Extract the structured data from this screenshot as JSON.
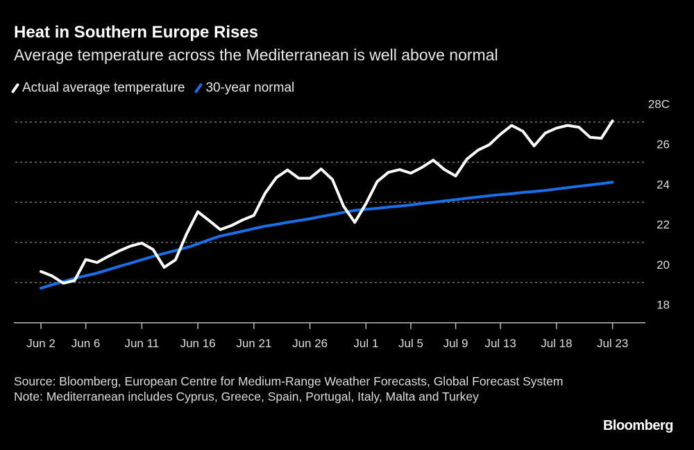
{
  "header": {
    "title": "Heat in Southern Europe Rises",
    "subtitle": "Average temperature across the Mediterranean is well above normal"
  },
  "footer": {
    "source": "Source: Bloomberg, European Centre for Medium-Range Weather Forecasts, Global Forecast System",
    "note": "Note: Mediterranean includes Cyprus, Greece, Spain, Portugal, Italy, Malta and Turkey",
    "logo": "Bloomberg"
  },
  "chart_data": {
    "type": "line",
    "title": "Heat in Southern Europe Rises",
    "subtitle": "Average temperature across the Mediterranean is well above normal",
    "x_start": "Jun 2",
    "x_end": "Jul 23",
    "x_tick_labels": [
      "Jun 2",
      "Jun 6",
      "Jun 11",
      "Jun 16",
      "Jun 21",
      "Jun 26",
      "Jul 1",
      "Jul 5",
      "Jul 9",
      "Jul 13",
      "Jul 18",
      "Jul 23"
    ],
    "x_tick_days": [
      0,
      4,
      9,
      14,
      19,
      24,
      29,
      33,
      37,
      41,
      46,
      51
    ],
    "y_tick_labels": [
      "18",
      "20",
      "22",
      "24",
      "26",
      "28C"
    ],
    "y_ticks": [
      18,
      20,
      22,
      24,
      26,
      28
    ],
    "ylim": [
      18,
      28
    ],
    "grid": true,
    "legend_position": "top-left",
    "series": [
      {
        "name": "Actual average temperature",
        "color": "#ffffff",
        "values": [
          20.55,
          20.33,
          19.97,
          20.1,
          21.15,
          21.0,
          21.3,
          21.58,
          21.82,
          21.97,
          21.65,
          20.76,
          21.13,
          22.43,
          23.53,
          23.09,
          22.64,
          22.84,
          23.12,
          23.35,
          24.45,
          25.23,
          25.61,
          25.2,
          25.2,
          25.66,
          25.14,
          23.81,
          23.0,
          23.93,
          25.03,
          25.49,
          25.63,
          25.45,
          25.74,
          26.1,
          25.63,
          25.31,
          26.15,
          26.6,
          26.87,
          27.39,
          27.83,
          27.54,
          26.81,
          27.45,
          27.7,
          27.83,
          27.74,
          27.24,
          27.19,
          28.06
        ]
      },
      {
        "name": "30-year normal",
        "color": "#1a6ee8",
        "values": [
          19.72,
          19.89,
          20.05,
          20.21,
          20.34,
          20.47,
          20.64,
          20.81,
          20.97,
          21.14,
          21.3,
          21.45,
          21.6,
          21.74,
          21.93,
          22.13,
          22.32,
          22.44,
          22.56,
          22.69,
          22.81,
          22.9,
          23.0,
          23.09,
          23.18,
          23.29,
          23.39,
          23.5,
          23.6,
          23.65,
          23.7,
          23.76,
          23.81,
          23.87,
          23.94,
          24.0,
          24.07,
          24.13,
          24.2,
          24.26,
          24.33,
          24.38,
          24.43,
          24.49,
          24.54,
          24.59,
          24.66,
          24.73,
          24.8,
          24.86,
          24.93,
          25.0
        ]
      }
    ]
  }
}
